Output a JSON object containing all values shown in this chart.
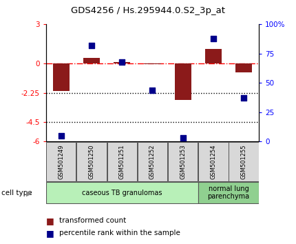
{
  "title": "GDS4256 / Hs.295944.0.S2_3p_at",
  "samples": [
    "GSM501249",
    "GSM501250",
    "GSM501251",
    "GSM501252",
    "GSM501253",
    "GSM501254",
    "GSM501255"
  ],
  "transformed_count": [
    -2.1,
    0.45,
    0.1,
    -0.05,
    -2.8,
    1.1,
    -0.7
  ],
  "percentile_rank": [
    5,
    82,
    68,
    44,
    3,
    88,
    37
  ],
  "ylim_left": [
    -6,
    3
  ],
  "yticks_left": [
    -6,
    -4.5,
    -2.25,
    0,
    3
  ],
  "ytick_labels_left": [
    "-6",
    "-4.5",
    "-2.25",
    "0",
    "3"
  ],
  "ylim_right": [
    0,
    100
  ],
  "yticks_right": [
    0,
    25,
    50,
    75,
    100
  ],
  "ytick_labels_right": [
    "0",
    "25",
    "50",
    "75",
    "100%"
  ],
  "hlines": [
    -2.25,
    -4.5
  ],
  "zero_line_y": 0,
  "bar_color": "#8B1A1A",
  "dot_color": "#00008B",
  "bar_width": 0.55,
  "dot_size": 40,
  "cell_type_groups": [
    {
      "label": "caseous TB granulomas",
      "samples": [
        0,
        1,
        2,
        3,
        4
      ],
      "color": "#b8f0b8"
    },
    {
      "label": "normal lung\nparenchyma",
      "samples": [
        5,
        6
      ],
      "color": "#90d090"
    }
  ],
  "legend_bar_label": "transformed count",
  "legend_dot_label": "percentile rank within the sample",
  "cell_type_label": "cell type",
  "bg_color": "#ffffff"
}
